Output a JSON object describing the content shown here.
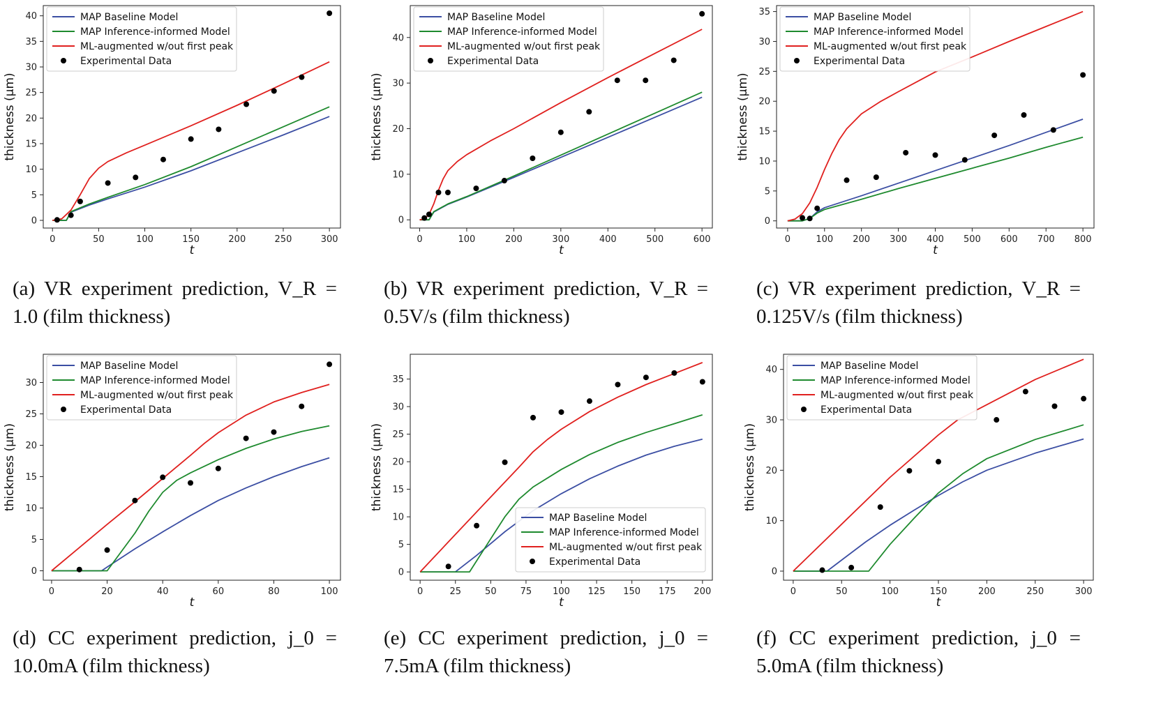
{
  "legend_labels": {
    "baseline": "MAP Baseline Model",
    "inference": "MAP Inference-informed Model",
    "ml": "ML-augmented w/out first peak",
    "data": "Experimental Data"
  },
  "colors": {
    "baseline": "#3b4ea3",
    "inference": "#1e8a2e",
    "ml": "#e0201e",
    "data": "#000000"
  },
  "chart_data": [
    {
      "type": "line",
      "caption_line1": "(a) VR experiment prediction, V_R =",
      "caption_line2": "1.0 (film thickness)",
      "xlabel": "t",
      "ylabel": "thickness (μm)",
      "xlim": [
        -10,
        312
      ],
      "ylim": [
        -1.5,
        42
      ],
      "xticks": [
        0,
        50,
        100,
        150,
        200,
        250,
        300
      ],
      "yticks": [
        0,
        5,
        10,
        15,
        20,
        25,
        30,
        35,
        40
      ],
      "legend_position": "top-left",
      "series": [
        {
          "name": "MAP Baseline Model",
          "key": "baseline",
          "x": [
            0,
            15,
            20,
            40,
            60,
            100,
            150,
            200,
            250,
            300
          ],
          "y": [
            0,
            0,
            1.6,
            3.0,
            4.2,
            6.5,
            9.7,
            13.2,
            16.7,
            20.3
          ]
        },
        {
          "name": "MAP Inference-informed Model",
          "key": "inference",
          "x": [
            0,
            15,
            20,
            40,
            60,
            100,
            150,
            200,
            250,
            300
          ],
          "y": [
            0,
            0,
            1.7,
            3.2,
            4.5,
            7.0,
            10.5,
            14.4,
            18.3,
            22.2
          ]
        },
        {
          "name": "ML-augmented w/out first peak",
          "key": "ml",
          "x": [
            0,
            10,
            20,
            30,
            40,
            50,
            60,
            80,
            100,
            150,
            200,
            250,
            300
          ],
          "y": [
            0,
            0.3,
            2.0,
            5.0,
            8.2,
            10.2,
            11.5,
            13.2,
            14.7,
            18.5,
            22.5,
            26.7,
            31.0
          ]
        }
      ],
      "scatter": {
        "name": "Experimental Data",
        "x": [
          5,
          20,
          30,
          60,
          90,
          120,
          150,
          180,
          210,
          240,
          270,
          300
        ],
        "y": [
          0.1,
          1.0,
          3.7,
          7.3,
          8.4,
          11.9,
          15.9,
          17.8,
          22.7,
          25.3,
          28.0,
          40.5
        ]
      }
    },
    {
      "type": "line",
      "caption_line1": "(b) VR experiment prediction, V_R =",
      "caption_line2": "0.5V/s (film thickness)",
      "xlabel": "t",
      "ylabel": "thickness (μm)",
      "xlim": [
        -20,
        622
      ],
      "ylim": [
        -1.8,
        47
      ],
      "xticks": [
        0,
        100,
        200,
        300,
        400,
        500,
        600
      ],
      "yticks": [
        0,
        10,
        20,
        30,
        40
      ],
      "legend_position": "top-left",
      "series": [
        {
          "name": "MAP Baseline Model",
          "key": "baseline",
          "x": [
            0,
            20,
            30,
            60,
            100,
            200,
            300,
            400,
            500,
            600
          ],
          "y": [
            0,
            0,
            1.7,
            3.4,
            5.0,
            9.3,
            13.7,
            18.1,
            22.5,
            26.9
          ]
        },
        {
          "name": "MAP Inference-informed Model",
          "key": "inference",
          "x": [
            0,
            20,
            30,
            60,
            100,
            200,
            300,
            400,
            500,
            600
          ],
          "y": [
            0,
            0,
            1.8,
            3.5,
            5.1,
            9.6,
            14.2,
            18.8,
            23.4,
            28.0
          ]
        },
        {
          "name": "ML-augmented w/out first peak",
          "key": "ml",
          "x": [
            0,
            10,
            20,
            30,
            40,
            50,
            60,
            80,
            100,
            150,
            200,
            300,
            400,
            500,
            600
          ],
          "y": [
            0,
            0.2,
            1.2,
            3.5,
            6.5,
            9.0,
            10.8,
            12.8,
            14.3,
            17.3,
            20.0,
            25.7,
            31.2,
            36.5,
            41.8
          ]
        }
      ],
      "scatter": {
        "name": "Experimental Data",
        "x": [
          10,
          20,
          40,
          60,
          120,
          180,
          240,
          300,
          360,
          420,
          480,
          540,
          600
        ],
        "y": [
          0.4,
          1.2,
          6.0,
          6.0,
          6.9,
          8.6,
          13.5,
          19.2,
          23.7,
          30.6,
          30.6,
          35.0,
          45.2
        ]
      }
    },
    {
      "type": "line",
      "caption_line1": "(c) VR experiment prediction, V_R =",
      "caption_line2": "0.125V/s (film thickness)",
      "xlabel": "t",
      "ylabel": "thickness (μm)",
      "xlim": [
        -30,
        830
      ],
      "ylim": [
        -1.2,
        36
      ],
      "xticks": [
        0,
        100,
        200,
        300,
        400,
        500,
        600,
        700,
        800
      ],
      "yticks": [
        0,
        5,
        10,
        15,
        20,
        25,
        30,
        35
      ],
      "legend_position": "top-left",
      "series": [
        {
          "name": "MAP Baseline Model",
          "key": "baseline",
          "x": [
            0,
            40,
            60,
            80,
            100,
            200,
            300,
            400,
            500,
            600,
            700,
            800
          ],
          "y": [
            0,
            0,
            0.4,
            1.5,
            2.2,
            4.2,
            6.3,
            8.4,
            10.5,
            12.6,
            14.8,
            17.0
          ]
        },
        {
          "name": "MAP Inference-informed Model",
          "key": "inference",
          "x": [
            0,
            40,
            60,
            80,
            100,
            200,
            300,
            400,
            500,
            600,
            700,
            800
          ],
          "y": [
            0,
            0,
            0.4,
            1.3,
            1.9,
            3.6,
            5.4,
            7.1,
            8.8,
            10.5,
            12.3,
            14.0
          ]
        },
        {
          "name": "ML-augmented w/out first peak",
          "key": "ml",
          "x": [
            0,
            20,
            40,
            60,
            80,
            100,
            120,
            140,
            160,
            200,
            250,
            300,
            400,
            500,
            600,
            700,
            800
          ],
          "y": [
            0,
            0.3,
            1.2,
            3.0,
            5.6,
            8.6,
            11.3,
            13.6,
            15.4,
            17.9,
            19.9,
            21.6,
            24.9,
            27.4,
            30.0,
            32.5,
            35.0
          ]
        }
      ],
      "scatter": {
        "name": "Experimental Data",
        "x": [
          40,
          60,
          80,
          160,
          240,
          320,
          400,
          480,
          560,
          640,
          720,
          800
        ],
        "y": [
          0.5,
          0.4,
          2.1,
          6.8,
          7.3,
          11.4,
          11.0,
          10.2,
          14.3,
          17.7,
          15.2,
          24.4
        ]
      }
    },
    {
      "type": "line",
      "caption_line1": "(d) CC experiment prediction, j_0 =",
      "caption_line2": "10.0mA (film thickness)",
      "xlabel": "t",
      "ylabel": "thickness (μm)",
      "xlim": [
        -3,
        104
      ],
      "ylim": [
        -1.5,
        34.5
      ],
      "xticks": [
        0,
        20,
        40,
        60,
        80,
        100
      ],
      "yticks": [
        0,
        5,
        10,
        15,
        20,
        25,
        30
      ],
      "legend_position": "top-left",
      "series": [
        {
          "name": "MAP Baseline Model",
          "key": "baseline",
          "x": [
            0,
            18,
            20,
            30,
            40,
            50,
            60,
            70,
            80,
            90,
            100
          ],
          "y": [
            0,
            0,
            0.6,
            3.5,
            6.2,
            8.8,
            11.2,
            13.2,
            15.0,
            16.6,
            18.0
          ]
        },
        {
          "name": "MAP Inference-informed Model",
          "key": "inference",
          "x": [
            0,
            20,
            30,
            35,
            40,
            45,
            50,
            60,
            70,
            80,
            90,
            100
          ],
          "y": [
            0,
            0,
            6.0,
            9.5,
            12.5,
            14.4,
            15.6,
            17.7,
            19.5,
            21.0,
            22.2,
            23.1
          ]
        },
        {
          "name": "ML-augmented w/out first peak",
          "key": "ml",
          "x": [
            0,
            10,
            20,
            30,
            40,
            50,
            55,
            60,
            70,
            80,
            90,
            100
          ],
          "y": [
            0,
            3.7,
            7.4,
            11.0,
            14.7,
            18.4,
            20.3,
            22.0,
            24.8,
            26.9,
            28.4,
            29.7
          ]
        }
      ],
      "scatter": {
        "name": "Experimental Data",
        "x": [
          10,
          20,
          30,
          40,
          50,
          60,
          70,
          80,
          90,
          100
        ],
        "y": [
          0.2,
          3.3,
          11.2,
          14.9,
          14.0,
          16.3,
          21.1,
          22.1,
          26.2,
          32.9
        ]
      }
    },
    {
      "type": "line",
      "caption_line1": "(e) CC experiment prediction, j_0 =",
      "caption_line2": "7.5mA (film thickness)",
      "xlabel": "t",
      "ylabel": "thickness (μm)",
      "xlim": [
        -7,
        207
      ],
      "ylim": [
        -1.5,
        39.5
      ],
      "xticks": [
        0,
        25,
        50,
        75,
        100,
        125,
        150,
        175,
        200
      ],
      "yticks": [
        0,
        5,
        10,
        15,
        20,
        25,
        30,
        35
      ],
      "legend_position": "lower-right",
      "series": [
        {
          "name": "MAP Baseline Model",
          "key": "baseline",
          "x": [
            0,
            25,
            40,
            60,
            80,
            100,
            120,
            140,
            160,
            180,
            200
          ],
          "y": [
            0,
            0,
            3.0,
            7.3,
            11.1,
            14.2,
            16.9,
            19.2,
            21.2,
            22.8,
            24.1
          ]
        },
        {
          "name": "MAP Inference-informed Model",
          "key": "inference",
          "x": [
            0,
            35,
            50,
            60,
            70,
            80,
            100,
            120,
            140,
            160,
            180,
            200
          ],
          "y": [
            0,
            0,
            6.0,
            10.0,
            13.2,
            15.4,
            18.6,
            21.3,
            23.5,
            25.3,
            26.9,
            28.5
          ]
        },
        {
          "name": "ML-augmented w/out first peak",
          "key": "ml",
          "x": [
            0,
            25,
            50,
            70,
            80,
            90,
            100,
            120,
            140,
            160,
            180,
            200
          ],
          "y": [
            0,
            6.8,
            13.6,
            19.0,
            21.8,
            24.0,
            25.9,
            29.1,
            31.7,
            34.0,
            36.0,
            38.0
          ]
        }
      ],
      "scatter": {
        "name": "Experimental Data",
        "x": [
          20,
          40,
          60,
          80,
          100,
          120,
          140,
          160,
          180,
          200
        ],
        "y": [
          1.0,
          8.4,
          19.9,
          28.0,
          29.0,
          31.0,
          34.0,
          35.3,
          36.1,
          34.5
        ]
      }
    },
    {
      "type": "line",
      "caption_line1": "(f) CC experiment prediction, j_0 =",
      "caption_line2": "5.0mA (film thickness)",
      "xlabel": "t",
      "ylabel": "thickness (μm)",
      "xlim": [
        -10,
        310
      ],
      "ylim": [
        -1.8,
        43
      ],
      "xticks": [
        0,
        50,
        100,
        150,
        200,
        250,
        300
      ],
      "yticks": [
        0,
        10,
        20,
        30,
        40
      ],
      "legend_position": "top-left",
      "series": [
        {
          "name": "MAP Baseline Model",
          "key": "baseline",
          "x": [
            0,
            35,
            50,
            75,
            100,
            125,
            150,
            175,
            200,
            250,
            300
          ],
          "y": [
            0,
            0,
            2.2,
            5.8,
            9.1,
            12.1,
            15.0,
            17.7,
            20.0,
            23.4,
            26.2
          ]
        },
        {
          "name": "MAP Inference-informed Model",
          "key": "inference",
          "x": [
            0,
            78,
            100,
            125,
            150,
            175,
            200,
            250,
            300
          ],
          "y": [
            0,
            0,
            5.3,
            10.5,
            15.5,
            19.3,
            22.3,
            26.1,
            29.0
          ]
        },
        {
          "name": "ML-augmented w/out first peak",
          "key": "ml",
          "x": [
            0,
            50,
            100,
            150,
            170,
            200,
            250,
            300
          ],
          "y": [
            0,
            9.3,
            18.6,
            27.0,
            30.0,
            33.0,
            38.0,
            42.0
          ]
        }
      ],
      "scatter": {
        "name": "Experimental Data",
        "x": [
          30,
          60,
          90,
          120,
          150,
          210,
          240,
          270,
          300
        ],
        "y": [
          0.2,
          0.7,
          12.7,
          19.9,
          21.7,
          30.0,
          35.6,
          32.7,
          34.2
        ]
      }
    }
  ]
}
